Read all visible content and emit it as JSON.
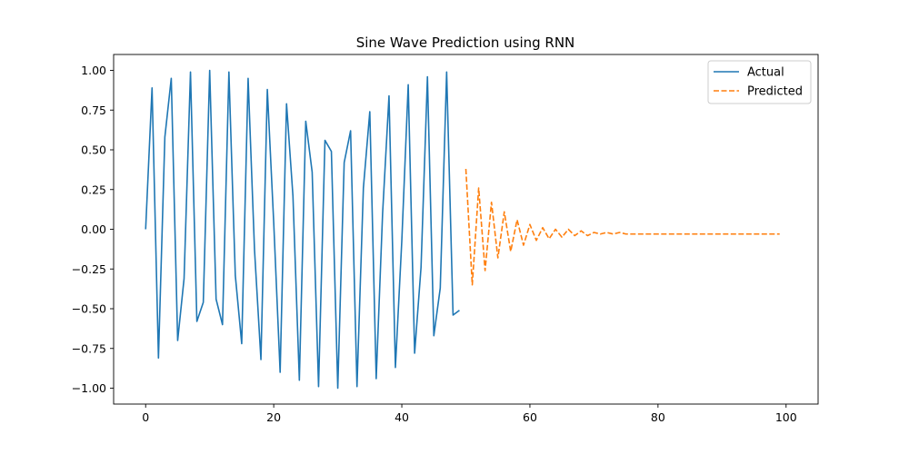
{
  "chart_data": {
    "type": "line",
    "title": "Sine Wave Prediction using RNN",
    "xlabel": "",
    "ylabel": "",
    "xlim": [
      -5,
      105
    ],
    "ylim": [
      -1.1,
      1.1
    ],
    "x_ticks": [
      0,
      20,
      40,
      60,
      80,
      100
    ],
    "y_ticks": [
      1.0,
      0.75,
      0.5,
      0.25,
      0.0,
      -0.25,
      -0.5,
      -0.75,
      -1.0
    ],
    "x_tick_labels": [
      "0",
      "20",
      "40",
      "60",
      "80",
      "100"
    ],
    "y_tick_labels": [
      "1.00",
      "0.75",
      "0.50",
      "0.25",
      "0.00",
      "−0.25",
      "−0.50",
      "−0.75",
      "−1.00"
    ],
    "grid": false,
    "legend_position": "top-right",
    "series": [
      {
        "name": "Actual",
        "color": "#1f77b4",
        "dash": "solid",
        "x_start": 0,
        "values": [
          0.0,
          0.89,
          -0.81,
          0.58,
          0.95,
          -0.7,
          -0.31,
          0.99,
          -0.58,
          -0.46,
          1.0,
          -0.44,
          -0.6,
          0.99,
          -0.29,
          -0.72,
          0.95,
          -0.13,
          -0.82,
          0.88,
          0.04,
          -0.9,
          0.79,
          0.21,
          -0.95,
          0.68,
          0.36,
          -0.99,
          0.56,
          0.49,
          -1.0,
          0.42,
          0.62,
          -0.99,
          0.26,
          0.74,
          -0.94,
          0.1,
          0.84,
          -0.87,
          -0.07,
          0.91,
          -0.78,
          -0.24,
          0.96,
          -0.67,
          -0.37,
          0.99,
          -0.54,
          -0.51
        ]
      },
      {
        "name": "Predicted",
        "color": "#ff7f0e",
        "dash": "dashed",
        "x_start": 50,
        "values": [
          0.38,
          -0.35,
          0.26,
          -0.26,
          0.17,
          -0.18,
          0.11,
          -0.14,
          0.06,
          -0.1,
          0.03,
          -0.07,
          0.01,
          -0.06,
          0.0,
          -0.05,
          0.0,
          -0.04,
          -0.01,
          -0.04,
          -0.02,
          -0.03,
          -0.02,
          -0.03,
          -0.02,
          -0.03,
          -0.03,
          -0.03,
          -0.03,
          -0.03,
          -0.03,
          -0.03,
          -0.03,
          -0.03,
          -0.03,
          -0.03,
          -0.03,
          -0.03,
          -0.03,
          -0.03,
          -0.03,
          -0.03,
          -0.03,
          -0.03,
          -0.03,
          -0.03,
          -0.03,
          -0.03,
          -0.03,
          -0.03
        ]
      }
    ]
  }
}
